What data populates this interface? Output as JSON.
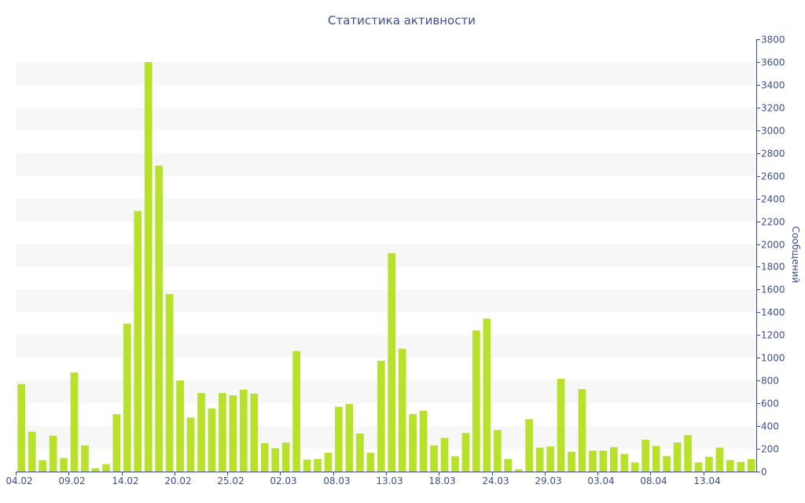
{
  "chart_data": {
    "type": "bar",
    "title": "Статистика активности",
    "xlabel": "",
    "ylabel": "Сообщений",
    "ylim": [
      0,
      3800
    ],
    "y_ticks": [
      0,
      200,
      400,
      600,
      800,
      1000,
      1200,
      1400,
      1600,
      1800,
      2000,
      2200,
      2400,
      2600,
      2800,
      3000,
      3200,
      3400,
      3600,
      3800
    ],
    "y_axis_side": "right",
    "grid": "alternating horizontal bands",
    "x_tick_labels": [
      {
        "index": 0,
        "label": "04.02"
      },
      {
        "index": 5,
        "label": "09.02"
      },
      {
        "index": 10,
        "label": "14.02"
      },
      {
        "index": 15,
        "label": "20.02"
      },
      {
        "index": 20,
        "label": "25.02"
      },
      {
        "index": 25,
        "label": "02.03"
      },
      {
        "index": 30,
        "label": "08.03"
      },
      {
        "index": 35,
        "label": "13.03"
      },
      {
        "index": 40,
        "label": "18.03"
      },
      {
        "index": 45,
        "label": "24.03"
      },
      {
        "index": 50,
        "label": "29.03"
      },
      {
        "index": 55,
        "label": "03.04"
      },
      {
        "index": 60,
        "label": "08.04"
      },
      {
        "index": 65,
        "label": "13.04"
      }
    ],
    "values": [
      770,
      350,
      100,
      315,
      120,
      870,
      230,
      30,
      65,
      505,
      1300,
      2290,
      3600,
      2690,
      1560,
      800,
      475,
      690,
      555,
      690,
      670,
      720,
      685,
      250,
      205,
      255,
      1060,
      105,
      110,
      165,
      570,
      595,
      335,
      165,
      975,
      1920,
      1080,
      505,
      535,
      230,
      295,
      135,
      340,
      1240,
      1345,
      365,
      110,
      20,
      460,
      210,
      220,
      815,
      175,
      725,
      185,
      185,
      215,
      155,
      80,
      280,
      225,
      135,
      255,
      320,
      80,
      130,
      210,
      100,
      85,
      110
    ],
    "colors": {
      "bar": "#b7e12a",
      "axis": "#3d4f8f",
      "band": "#f7f7f7"
    }
  }
}
